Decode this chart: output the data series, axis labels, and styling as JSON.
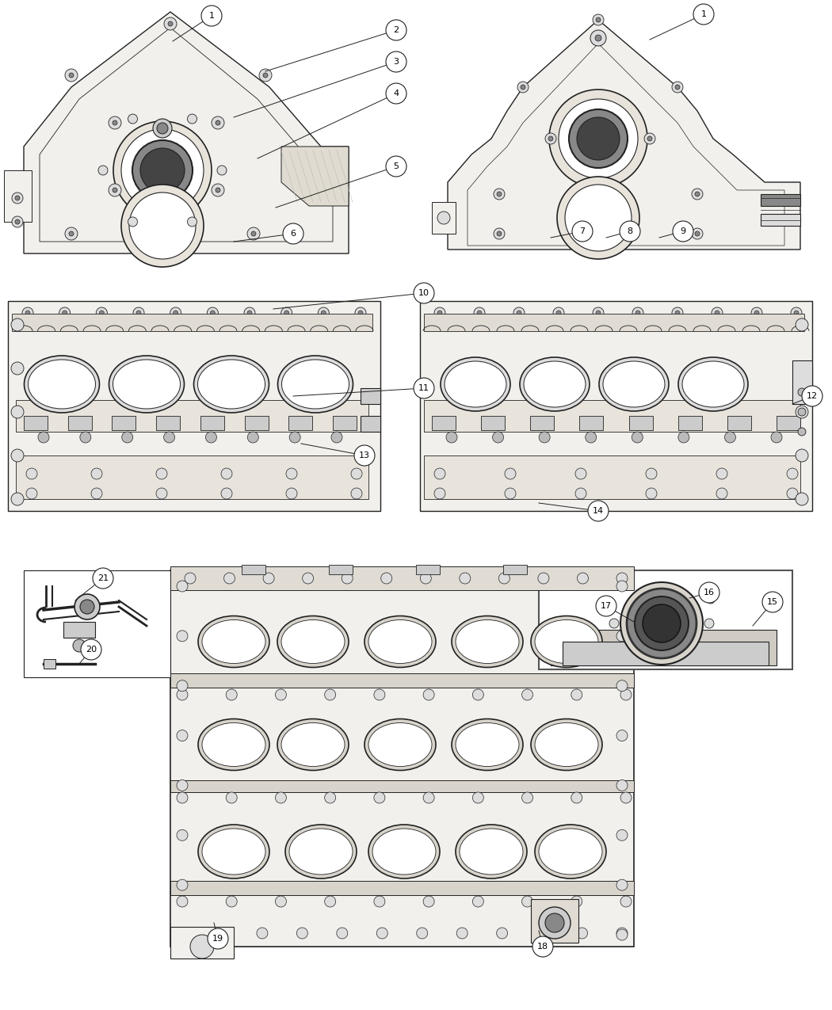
{
  "bg": "#ffffff",
  "callout_r": 0.013,
  "callout_border": "#000000",
  "callout_fill": "#ffffff",
  "callout_lw": 0.8,
  "callout_fs": 8,
  "part_lw": 0.7,
  "outline_color": "#222222",
  "fill_light": "#f2f0ec",
  "fill_white": "#ffffff",
  "fill_dark": "#888888",
  "fill_mid": "#cccccc"
}
